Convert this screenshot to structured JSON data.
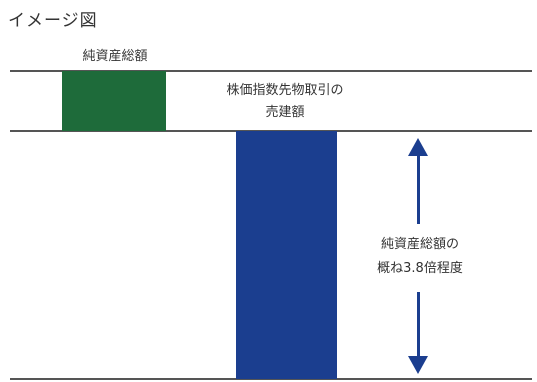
{
  "title": "イメージ図",
  "labels": {
    "net_assets": "純資産総額",
    "futures_line1": "株価指数先物取引の",
    "futures_line2": "売建額",
    "ratio_line1": "純資産総額の",
    "ratio_line2": "概ね3.8倍程度"
  },
  "colors": {
    "net_assets_bar": "#1e6b3a",
    "futures_bar": "#1b3e8f",
    "arrow": "#1b3e8f",
    "line": "#555555"
  }
}
